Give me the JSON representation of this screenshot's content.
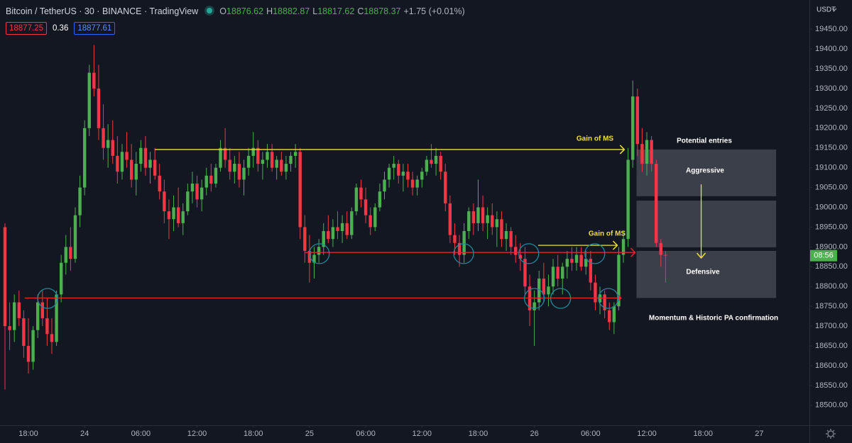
{
  "header": {
    "symbol": "Bitcoin / TetherUS · 30 · BINANCE · TradingView",
    "ohlc_letters": [
      "O",
      "H",
      "L",
      "C"
    ],
    "ohlc_values": [
      18876.62,
      18882.87,
      18817.62,
      18878.37
    ],
    "change": "+1.75 (+0.01%)",
    "bid": "18877.25",
    "spread": "0.36",
    "ask": "18877.61",
    "currency": "USDT",
    "countdown": "08:56"
  },
  "chart_data": {
    "type": "candlestick",
    "up_color": "#4caf50",
    "down_color": "#f23645",
    "candles": [
      [
        18950,
        18960,
        18540,
        18700
      ],
      [
        18700,
        18760,
        18640,
        18690
      ],
      [
        18690,
        18780,
        18660,
        18760
      ],
      [
        18760,
        18790,
        18700,
        18720
      ],
      [
        18720,
        18740,
        18620,
        18650
      ],
      [
        18650,
        18720,
        18580,
        18610
      ],
      [
        18610,
        18700,
        18590,
        18690
      ],
      [
        18690,
        18780,
        18670,
        18760
      ],
      [
        18760,
        18790,
        18700,
        18720
      ],
      [
        18720,
        18770,
        18650,
        18680
      ],
      [
        18680,
        18720,
        18630,
        18660
      ],
      [
        18660,
        18790,
        18650,
        18780
      ],
      [
        18780,
        18880,
        18760,
        18860
      ],
      [
        18860,
        18930,
        18830,
        18900
      ],
      [
        18900,
        18950,
        18840,
        18870
      ],
      [
        18870,
        19000,
        18860,
        18980
      ],
      [
        18980,
        19080,
        18950,
        19050
      ],
      [
        19050,
        19220,
        19030,
        19200
      ],
      [
        19200,
        19360,
        19180,
        19340
      ],
      [
        19340,
        19410,
        19280,
        19300
      ],
      [
        19300,
        19360,
        19170,
        19200
      ],
      [
        19200,
        19260,
        19120,
        19150
      ],
      [
        19150,
        19210,
        19100,
        19170
      ],
      [
        19170,
        19220,
        19110,
        19130
      ],
      [
        19130,
        19180,
        19060,
        19090
      ],
      [
        19090,
        19160,
        19070,
        19140
      ],
      [
        19140,
        19190,
        19100,
        19120
      ],
      [
        19120,
        19160,
        19050,
        19070
      ],
      [
        19070,
        19140,
        19030,
        19110
      ],
      [
        19110,
        19170,
        19090,
        19150
      ],
      [
        19150,
        19180,
        19080,
        19100
      ],
      [
        19100,
        19140,
        19060,
        19120
      ],
      [
        19120,
        19150,
        19070,
        19080
      ],
      [
        19080,
        19110,
        19020,
        19040
      ],
      [
        19040,
        19070,
        18960,
        18990
      ],
      [
        18990,
        19020,
        18920,
        18970
      ],
      [
        18970,
        19030,
        18940,
        19000
      ],
      [
        19000,
        19050,
        18950,
        18960
      ],
      [
        18960,
        19010,
        18930,
        18990
      ],
      [
        18990,
        19060,
        18980,
        19040
      ],
      [
        19040,
        19090,
        19010,
        19060
      ],
      [
        19060,
        19080,
        19000,
        19020
      ],
      [
        19020,
        19070,
        18990,
        19050
      ],
      [
        19050,
        19100,
        19030,
        19080
      ],
      [
        19080,
        19110,
        19040,
        19060
      ],
      [
        19060,
        19110,
        19050,
        19100
      ],
      [
        19100,
        19170,
        19090,
        19150
      ],
      [
        19150,
        19200,
        19100,
        19120
      ],
      [
        19120,
        19150,
        19070,
        19090
      ],
      [
        19090,
        19130,
        19060,
        19110
      ],
      [
        19110,
        19140,
        19050,
        19070
      ],
      [
        19070,
        19120,
        19030,
        19100
      ],
      [
        19100,
        19150,
        19080,
        19130
      ],
      [
        19130,
        19190,
        19100,
        19150
      ],
      [
        19150,
        19170,
        19090,
        19110
      ],
      [
        19110,
        19140,
        19070,
        19120
      ],
      [
        19120,
        19160,
        19100,
        19140
      ],
      [
        19140,
        19160,
        19090,
        19100
      ],
      [
        19100,
        19130,
        19070,
        19120
      ],
      [
        19120,
        19140,
        19080,
        19090
      ],
      [
        19090,
        19130,
        19070,
        19110
      ],
      [
        19110,
        19140,
        19090,
        19130
      ],
      [
        19130,
        19160,
        19100,
        19140
      ],
      [
        19140,
        19150,
        18920,
        18950
      ],
      [
        18950,
        18980,
        18860,
        18890
      ],
      [
        18890,
        18930,
        18810,
        18860
      ],
      [
        18860,
        18900,
        18820,
        18880
      ],
      [
        18880,
        18920,
        18860,
        18900
      ],
      [
        18900,
        18960,
        18880,
        18940
      ],
      [
        18940,
        18980,
        18910,
        18920
      ],
      [
        18920,
        18970,
        18900,
        18950
      ],
      [
        18950,
        18990,
        18920,
        18940
      ],
      [
        18940,
        18980,
        18910,
        18960
      ],
      [
        18960,
        18990,
        18920,
        18930
      ],
      [
        18930,
        19000,
        18920,
        18990
      ],
      [
        18990,
        19060,
        18980,
        19050
      ],
      [
        19050,
        19070,
        19000,
        19020
      ],
      [
        19020,
        19050,
        18960,
        18980
      ],
      [
        18980,
        19000,
        18930,
        18950
      ],
      [
        18950,
        19010,
        18940,
        19000
      ],
      [
        19000,
        19060,
        18990,
        19040
      ],
      [
        19040,
        19090,
        19020,
        19070
      ],
      [
        19070,
        19110,
        19050,
        19100
      ],
      [
        19100,
        19130,
        19070,
        19110
      ],
      [
        19110,
        19120,
        19060,
        19080
      ],
      [
        19080,
        19110,
        19040,
        19090
      ],
      [
        19090,
        19110,
        19050,
        19070
      ],
      [
        19070,
        19090,
        19030,
        19050
      ],
      [
        19050,
        19080,
        19030,
        19070
      ],
      [
        19070,
        19100,
        19050,
        19090
      ],
      [
        19090,
        19130,
        19080,
        19120
      ],
      [
        19120,
        19160,
        19100,
        19110
      ],
      [
        19110,
        19150,
        19080,
        19130
      ],
      [
        19130,
        19140,
        19070,
        19090
      ],
      [
        19090,
        19110,
        18990,
        19010
      ],
      [
        19010,
        19030,
        18910,
        18930
      ],
      [
        18930,
        18960,
        18880,
        18910
      ],
      [
        18910,
        18930,
        18850,
        18880
      ],
      [
        18880,
        18960,
        18860,
        18940
      ],
      [
        18940,
        19000,
        18920,
        18990
      ],
      [
        18990,
        19010,
        18930,
        18960
      ],
      [
        18960,
        19070,
        18940,
        19000
      ],
      [
        19000,
        19030,
        18940,
        18960
      ],
      [
        18960,
        19000,
        18920,
        18980
      ],
      [
        18980,
        19010,
        18930,
        18950
      ],
      [
        18950,
        18990,
        18900,
        18970
      ],
      [
        18970,
        18990,
        18900,
        18920
      ],
      [
        18920,
        18960,
        18890,
        18940
      ],
      [
        18940,
        18950,
        18880,
        18900
      ],
      [
        18900,
        18930,
        18860,
        18880
      ],
      [
        18880,
        18910,
        18840,
        18870
      ],
      [
        18870,
        18900,
        18780,
        18800
      ],
      [
        18800,
        18830,
        18700,
        18740
      ],
      [
        18740,
        18790,
        18650,
        18760
      ],
      [
        18760,
        18840,
        18740,
        18820
      ],
      [
        18820,
        18860,
        18760,
        18780
      ],
      [
        18780,
        18830,
        18750,
        18800
      ],
      [
        18800,
        18870,
        18780,
        18850
      ],
      [
        18850,
        18880,
        18800,
        18820
      ],
      [
        18820,
        18860,
        18780,
        18850
      ],
      [
        18850,
        18890,
        18820,
        18870
      ],
      [
        18870,
        18900,
        18840,
        18860
      ],
      [
        18860,
        18900,
        18840,
        18880
      ],
      [
        18880,
        18900,
        18840,
        18850
      ],
      [
        18850,
        18890,
        18830,
        18870
      ],
      [
        18870,
        18890,
        18790,
        18810
      ],
      [
        18810,
        18830,
        18740,
        18760
      ],
      [
        18760,
        18800,
        18730,
        18780
      ],
      [
        18780,
        18790,
        18720,
        18740
      ],
      [
        18740,
        18760,
        18690,
        18710
      ],
      [
        18710,
        18760,
        18680,
        18750
      ],
      [
        18750,
        18900,
        18740,
        18880
      ],
      [
        18880,
        18940,
        18860,
        18920
      ],
      [
        18920,
        19150,
        18900,
        19120
      ],
      [
        19120,
        19320,
        19100,
        19280
      ],
      [
        19280,
        19300,
        19130,
        19160
      ],
      [
        19160,
        19200,
        19090,
        19110
      ],
      [
        19110,
        19190,
        19080,
        19170
      ],
      [
        19170,
        19180,
        19090,
        19110
      ],
      [
        19110,
        19120,
        18900,
        18910
      ],
      [
        18910,
        18920,
        18850,
        18880
      ],
      [
        18880,
        18890,
        18810,
        18878
      ]
    ],
    "xlim": [
      -1.06,
      171.7
    ],
    "xticks": [
      {
        "value": 5,
        "label": "18:00"
      },
      {
        "value": 17,
        "label": "24"
      },
      {
        "value": 29,
        "label": "06:00"
      },
      {
        "value": 41,
        "label": "12:00"
      },
      {
        "value": 53,
        "label": "18:00"
      },
      {
        "value": 65,
        "label": "25"
      },
      {
        "value": 77,
        "label": "06:00"
      },
      {
        "value": 89,
        "label": "12:00"
      },
      {
        "value": 101,
        "label": "18:00"
      },
      {
        "value": 113,
        "label": "26"
      },
      {
        "value": 125,
        "label": "06:00"
      },
      {
        "value": 137,
        "label": "12:00"
      },
      {
        "value": 149,
        "label": "18:00"
      },
      {
        "value": 161,
        "label": "27"
      }
    ],
    "ylim": [
      18449.6,
      19523.6
    ],
    "yticks": [
      {
        "value": 18500,
        "label": "18500.00"
      },
      {
        "value": 18550,
        "label": "18550.00"
      },
      {
        "value": 18600,
        "label": "18600.00"
      },
      {
        "value": 18650,
        "label": "18650.00"
      },
      {
        "value": 18700,
        "label": "18700.00"
      },
      {
        "value": 18750,
        "label": "18750.00"
      },
      {
        "value": 18800,
        "label": "18800.00"
      },
      {
        "value": 18850,
        "label": "18850.00"
      },
      {
        "value": 18900,
        "label": "18900.00"
      },
      {
        "value": 18950,
        "label": "18950.00"
      },
      {
        "value": 19000,
        "label": "19000.00"
      },
      {
        "value": 19050,
        "label": "19050.00"
      },
      {
        "value": 19100,
        "label": "19100.00"
      },
      {
        "value": 19150,
        "label": "19150.00"
      },
      {
        "value": 19200,
        "label": "19200.00"
      },
      {
        "value": 19250,
        "label": "19250.00"
      },
      {
        "value": 19300,
        "label": "19300.00"
      },
      {
        "value": 19350,
        "label": "19350.00"
      },
      {
        "value": 19400,
        "label": "19400.00"
      },
      {
        "value": 19450,
        "label": "19450.00"
      }
    ],
    "grid": false,
    "levels": [
      {
        "price": 19146,
        "from": 32,
        "to": 132.2,
        "color": "#f0e130"
      },
      {
        "price": 18886,
        "from": 64,
        "to": 134.5,
        "color": "#e8222a"
      },
      {
        "price": 18771,
        "from": 4.2,
        "to": 131.5,
        "color": "#e8222a"
      },
      {
        "price": 18904,
        "from": 113.8,
        "to": 130.7,
        "color": "#f0e130"
      }
    ],
    "circles": [
      {
        "x": 9.1,
        "price": 18770
      },
      {
        "x": 67.1,
        "price": 18883
      },
      {
        "x": 97.9,
        "price": 18883
      },
      {
        "x": 111.8,
        "price": 18883
      },
      {
        "x": 125.9,
        "price": 18883
      },
      {
        "x": 113,
        "price": 18770
      },
      {
        "x": 118.6,
        "price": 18770
      },
      {
        "x": 128.8,
        "price": 18770
      }
    ],
    "circle_color": "#1f8a9a",
    "boxes": [
      {
        "from": 134.8,
        "to": 164.6,
        "top": 19146,
        "bottom": 19028
      },
      {
        "from": 134.8,
        "to": 164.6,
        "top": 19017,
        "bottom": 18899
      },
      {
        "from": 134.8,
        "to": 164.6,
        "top": 18890,
        "bottom": 18771
      }
    ],
    "arrow": {
      "x": 148.6,
      "from": 19058,
      "to": 18872,
      "color": "#f0e130"
    },
    "annotations": [
      "Gain of MS",
      "Gain of MS",
      "Potential entries",
      "Aggressive",
      "Defensive",
      "Momentum & Historic PA confirmation"
    ]
  }
}
